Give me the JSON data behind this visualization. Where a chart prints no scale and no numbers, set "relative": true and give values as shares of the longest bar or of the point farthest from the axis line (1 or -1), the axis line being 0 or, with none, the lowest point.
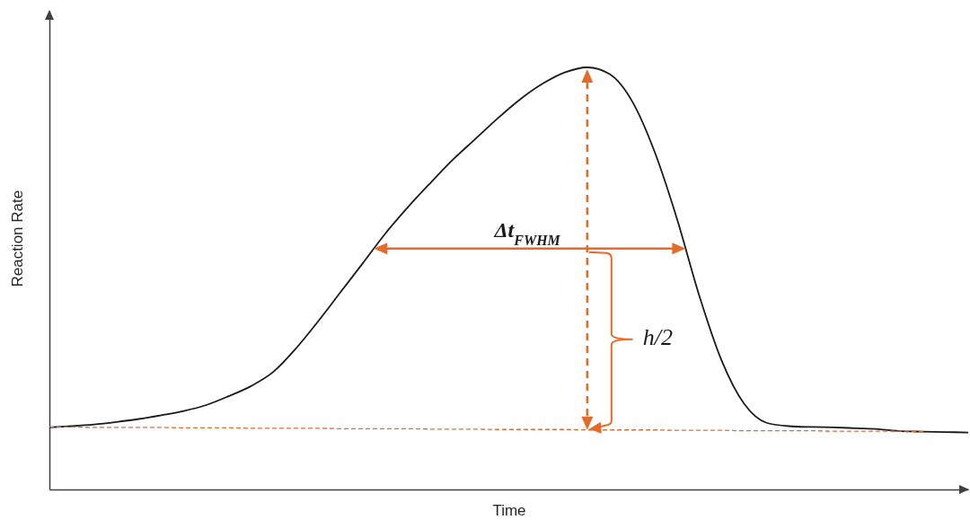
{
  "chart_data": {
    "type": "line",
    "xlabel": "Time",
    "ylabel": "Reaction Rate",
    "relative": true,
    "categories": [
      null,
      null,
      null,
      null,
      null,
      null,
      null,
      null,
      null,
      null,
      null,
      null,
      null,
      null,
      null,
      null,
      null,
      null,
      null,
      null,
      null,
      null,
      null,
      null,
      null,
      null,
      null,
      null,
      null,
      null,
      null,
      null,
      null,
      null,
      null,
      null,
      null,
      null,
      null,
      null,
      null,
      null
    ],
    "series": [
      {
        "color": "#1a1a1a",
        "values": [
          0.147,
          0.15,
          0.154,
          0.16,
          0.167,
          0.176,
          0.186,
          0.2,
          0.221,
          0.245,
          0.279,
          0.334,
          0.399,
          0.468,
          0.537,
          0.607,
          0.669,
          0.726,
          0.781,
          0.83,
          0.879,
          0.924,
          0.961,
          0.988,
          1,
          0.984,
          0.92,
          0.801,
          0.642,
          0.459,
          0.305,
          0.203,
          0.158,
          0.15,
          0.148,
          0.147,
          0.145,
          0.143,
          0.138,
          0.137,
          0.136,
          0.135
        ]
      },
      {
        "type": "line",
        "color": "#e36c2a",
        "line_style": "dashed",
        "values": [
          0.148,
          0.148,
          0.147,
          0.147,
          0.147,
          0.147,
          0.146,
          0.146,
          0.146,
          0.145,
          0.145,
          0.145,
          0.145,
          0.144,
          0.144,
          0.144,
          0.144,
          0.143,
          0.143,
          0.143,
          0.142,
          0.142,
          0.142,
          0.142,
          0.141,
          0.141,
          0.141,
          0.141,
          0.14,
          0.14,
          0.14,
          0.139,
          0.139,
          0.139,
          0.139,
          0.138,
          0.138,
          0.138,
          0.138,
          0.137,
          null,
          null
        ]
      }
    ],
    "annotations": [
      "Δt$_{FWHM}$",
      "h/2"
    ]
  }
}
